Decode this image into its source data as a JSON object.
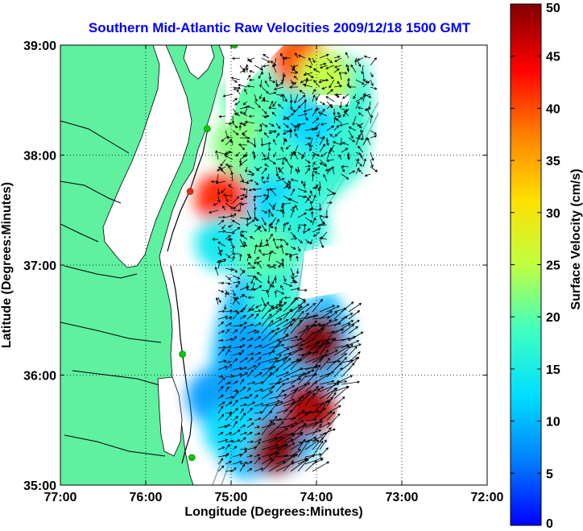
{
  "chart_data": {
    "type": "heatmap",
    "title": "Southern Mid-Atlantic Raw Velocities 2009/12/18 1500 GMT",
    "xlabel": "Longitude (Degrees:Minutes)",
    "ylabel": "Latitude (Degrees:Minutes)",
    "xlim": [
      -77,
      -72
    ],
    "ylim": [
      35,
      39
    ],
    "x_ticks": [
      {
        "value": -77,
        "label": "77:00"
      },
      {
        "value": -76,
        "label": "76:00"
      },
      {
        "value": -75,
        "label": "75:00"
      },
      {
        "value": -74,
        "label": "74:00"
      },
      {
        "value": -73,
        "label": "73:00"
      },
      {
        "value": -72,
        "label": "72:00"
      }
    ],
    "y_ticks": [
      {
        "value": 35,
        "label": "35:00"
      },
      {
        "value": 36,
        "label": "36:00"
      },
      {
        "value": 37,
        "label": "37:00"
      },
      {
        "value": 38,
        "label": "38:00"
      },
      {
        "value": 39,
        "label": "39:00"
      }
    ],
    "grid": true,
    "grid_lines": {
      "x": [
        -76,
        -75,
        -74,
        -73
      ],
      "y": [
        36,
        37,
        38
      ]
    },
    "colorbar": {
      "label": "Surface Velocity (cm/s)",
      "range": [
        0,
        50
      ],
      "ticks": [
        {
          "value": 0,
          "label": "0"
        },
        {
          "value": 5,
          "label": "5"
        },
        {
          "value": 10,
          "label": "10"
        },
        {
          "value": 15,
          "label": "15"
        },
        {
          "value": 20,
          "label": "20"
        },
        {
          "value": 25,
          "label": "25"
        },
        {
          "value": 30,
          "label": "30"
        },
        {
          "value": 35,
          "label": "35"
        },
        {
          "value": 40,
          "label": "40"
        },
        {
          "value": 45,
          "label": "45"
        },
        {
          "value": 50,
          "label": "50"
        }
      ],
      "colormap": "jet"
    },
    "velocity_regions": [
      {
        "lon": -74.2,
        "lat": 38.85,
        "speed": 40
      },
      {
        "lon": -73.9,
        "lat": 38.7,
        "speed": 25
      },
      {
        "lon": -74.8,
        "lat": 38.5,
        "speed": 20
      },
      {
        "lon": -74.1,
        "lat": 38.3,
        "speed": 12
      },
      {
        "lon": -74.9,
        "lat": 38.1,
        "speed": 22
      },
      {
        "lon": -74.5,
        "lat": 37.95,
        "speed": 18
      },
      {
        "lon": -75.1,
        "lat": 37.6,
        "speed": 42
      },
      {
        "lon": -74.5,
        "lat": 37.55,
        "speed": 12
      },
      {
        "lon": -74.2,
        "lat": 37.4,
        "speed": 16
      },
      {
        "lon": -75.1,
        "lat": 37.2,
        "speed": 14
      },
      {
        "lon": -74.6,
        "lat": 37.1,
        "speed": 20
      },
      {
        "lon": -74.5,
        "lat": 36.7,
        "speed": 17
      },
      {
        "lon": -74.0,
        "lat": 36.3,
        "speed": 50
      },
      {
        "lon": -74.8,
        "lat": 36.2,
        "speed": 8
      },
      {
        "lon": -75.2,
        "lat": 35.8,
        "speed": 8
      },
      {
        "lon": -74.1,
        "lat": 35.7,
        "speed": 48
      },
      {
        "lon": -74.5,
        "lat": 35.35,
        "speed": 50
      },
      {
        "lon": -75.0,
        "lat": 35.5,
        "speed": 12
      }
    ],
    "station_markers": [
      {
        "lon": -74.96,
        "lat": 39.0,
        "color": "#00cc00"
      },
      {
        "lon": -75.28,
        "lat": 38.24,
        "color": "#00cc00"
      },
      {
        "lon": -75.48,
        "lat": 37.67,
        "color": "#ff2020"
      },
      {
        "lon": -75.57,
        "lat": 36.19,
        "color": "#00cc00"
      },
      {
        "lon": -75.46,
        "lat": 35.25,
        "color": "#00cc00"
      }
    ]
  },
  "colors": {
    "land": "#5ff0a0",
    "ocean": "#ffffff",
    "coastline": "#000000",
    "bathymetry": "#a0a0a0",
    "title": "#0000ff"
  }
}
